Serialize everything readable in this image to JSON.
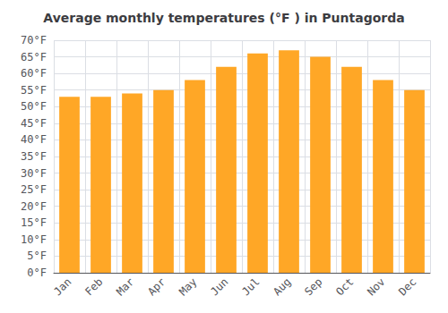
{
  "chart_data": {
    "type": "bar",
    "title": "Average monthly temperatures (°F ) in Puntagorda",
    "categories": [
      "Jan",
      "Feb",
      "Mar",
      "Apr",
      "May",
      "Jun",
      "Jul",
      "Aug",
      "Sep",
      "Oct",
      "Nov",
      "Dec"
    ],
    "values": [
      53,
      53,
      54,
      55,
      58,
      62,
      66,
      67,
      65,
      62,
      58,
      55
    ],
    "color": "#FFA726",
    "ylim": [
      0,
      70
    ],
    "yticks": [
      {
        "value": 0,
        "label": "0°F"
      },
      {
        "value": 5,
        "label": "5°F"
      },
      {
        "value": 10,
        "label": "10°F"
      },
      {
        "value": 15,
        "label": "15°F"
      },
      {
        "value": 20,
        "label": "20°F"
      },
      {
        "value": 25,
        "label": "25°F"
      },
      {
        "value": 30,
        "label": "30°F"
      },
      {
        "value": 35,
        "label": "35°F"
      },
      {
        "value": 40,
        "label": "40°F"
      },
      {
        "value": 45,
        "label": "45°F"
      },
      {
        "value": 50,
        "label": "50°F"
      },
      {
        "value": 55,
        "label": "55°F"
      },
      {
        "value": 60,
        "label": "60°F"
      },
      {
        "value": 65,
        "label": "65°F"
      },
      {
        "value": 70,
        "label": "70°F"
      }
    ],
    "grid": true
  }
}
